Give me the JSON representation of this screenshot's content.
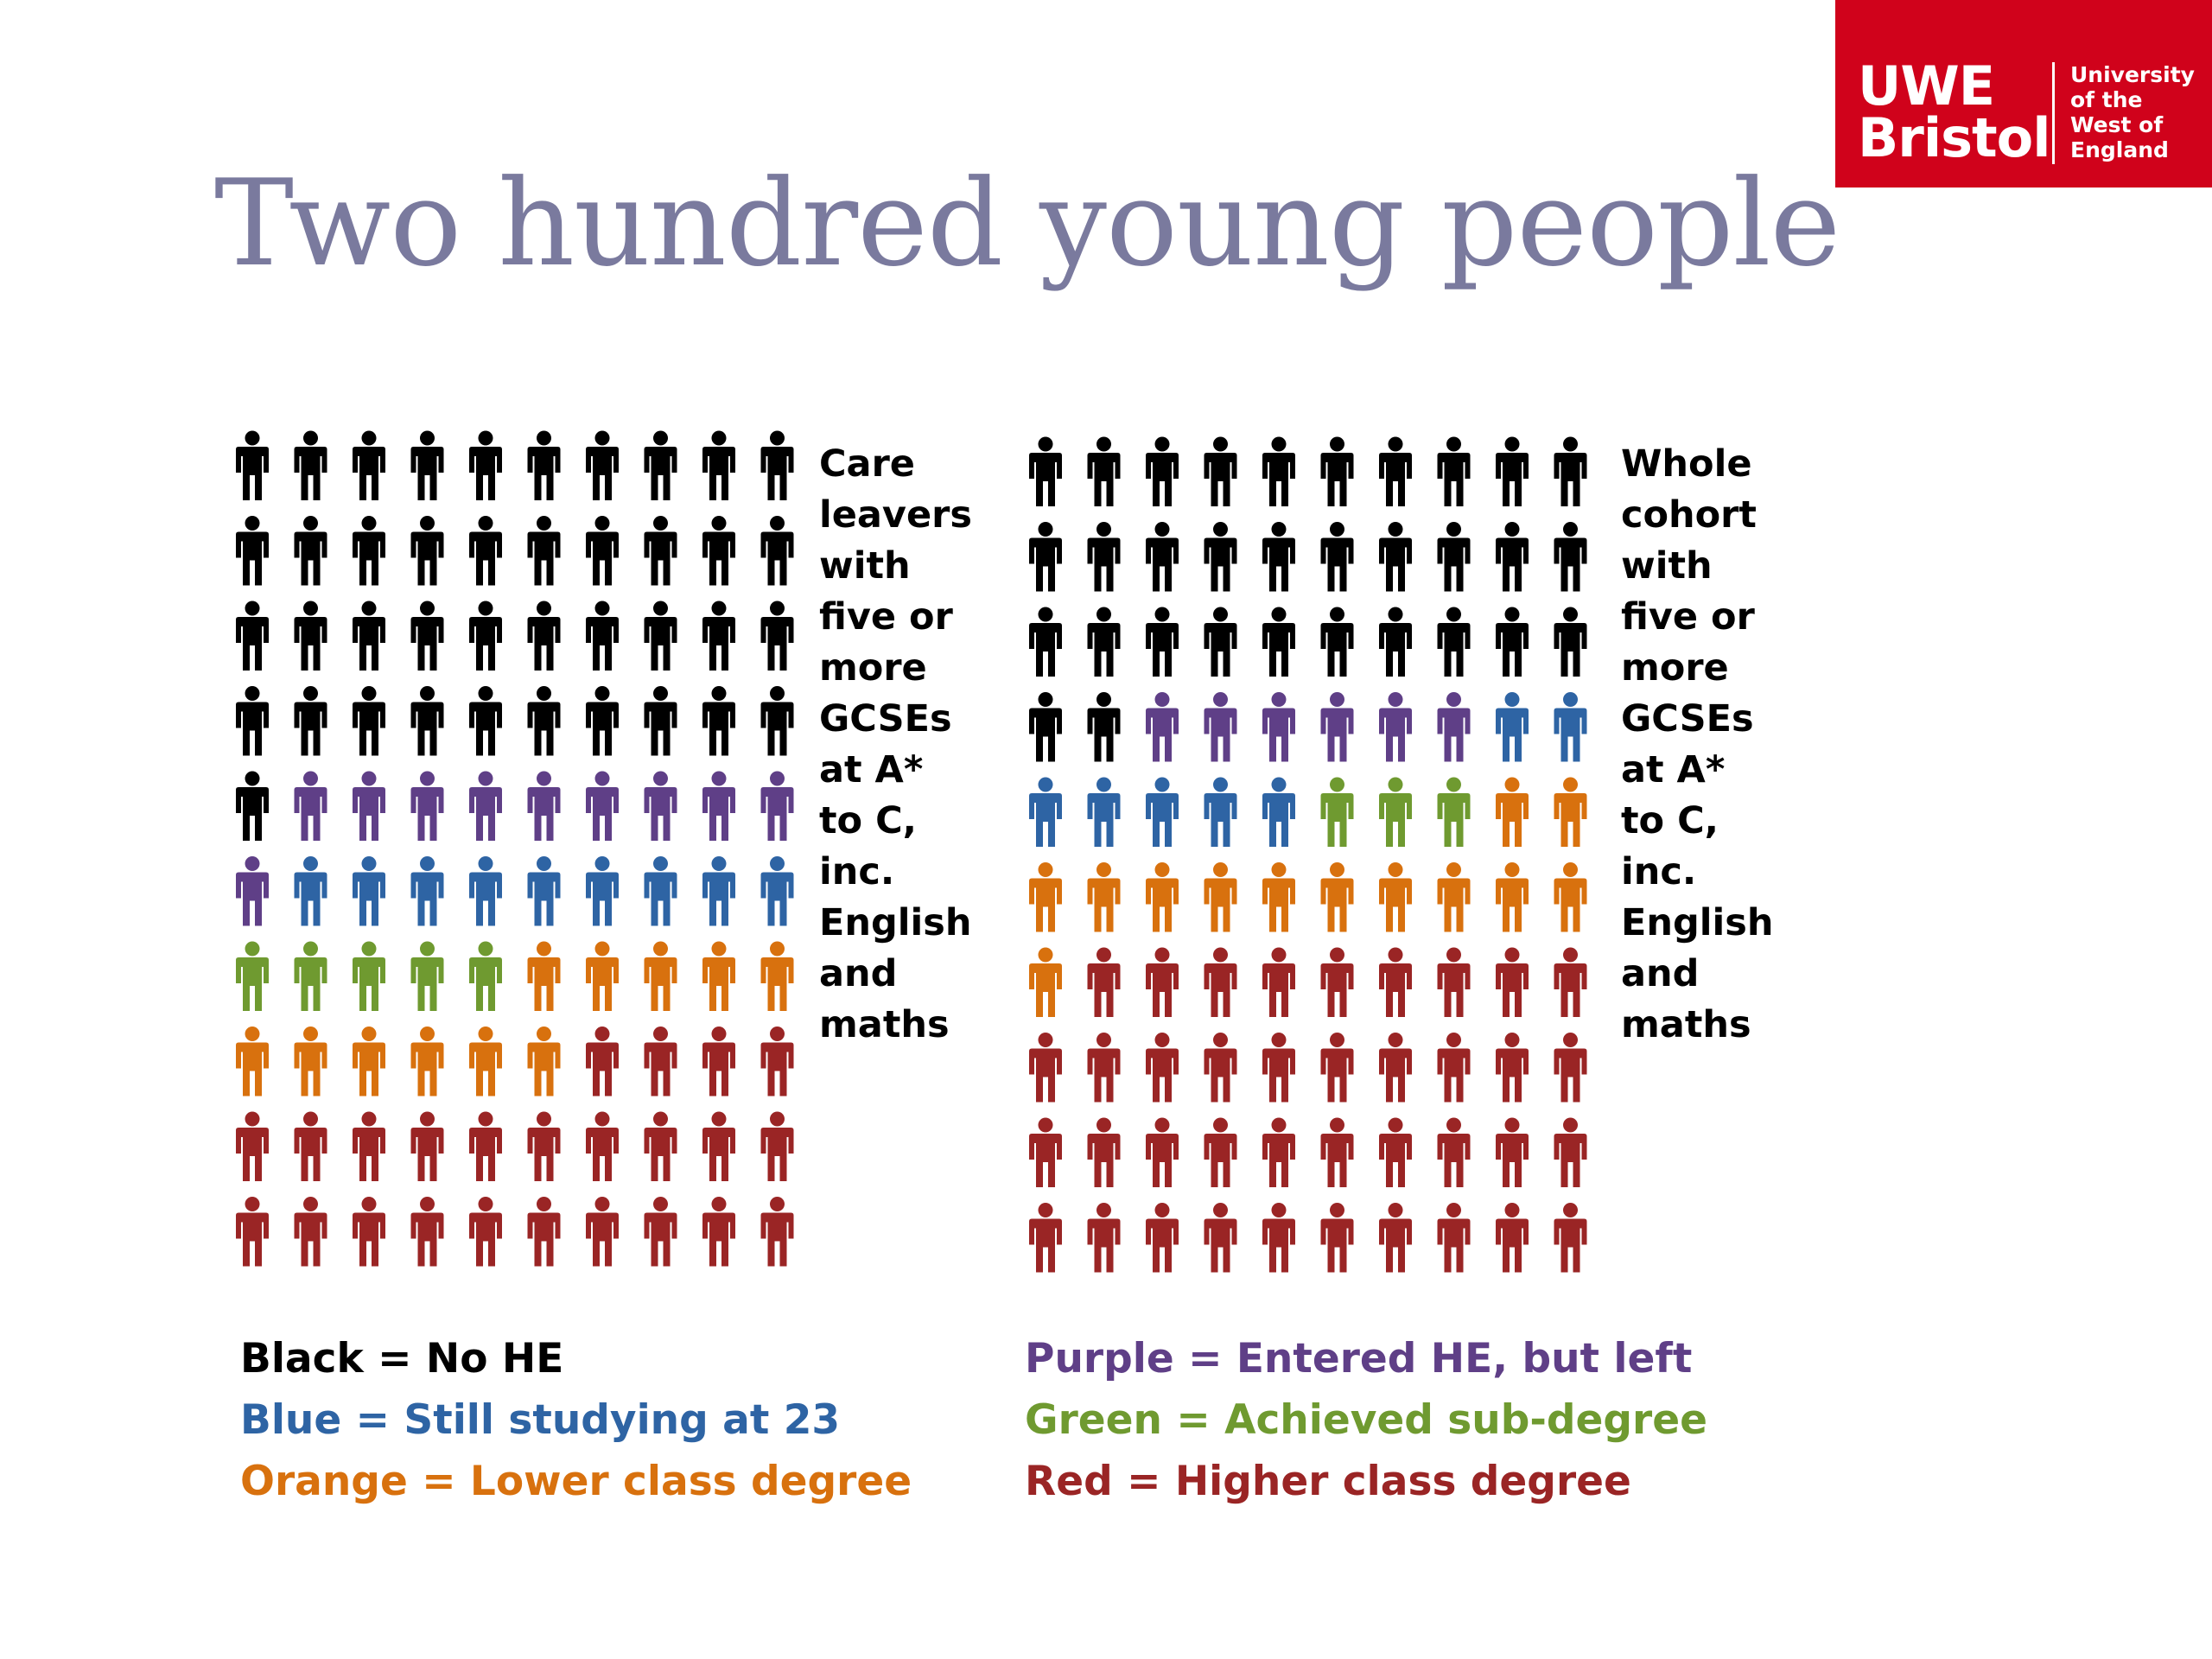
{
  "logo": {
    "main_lines": [
      "UWE",
      "Bristol"
    ],
    "sub_lines": [
      "University",
      "of the",
      "West of",
      "England"
    ]
  },
  "title": "Two hundred young people",
  "colors": {
    "black": "#000000",
    "purple": "#5f3f87",
    "blue": "#2e64a4",
    "green": "#6f9a30",
    "orange": "#d8710e",
    "red": "#9a2525"
  },
  "chart_data": [
    {
      "type": "pictogram",
      "description_label_lines": [
        "Care",
        "leavers",
        "with",
        "five or",
        "more",
        "GCSEs",
        "at A*",
        "to C,",
        "inc.",
        "English",
        "and",
        "maths"
      ],
      "units": 100,
      "columns": 10,
      "icon": "person-icon",
      "counts": [
        {
          "category": "black",
          "value": 41
        },
        {
          "category": "purple",
          "value": 10
        },
        {
          "category": "blue",
          "value": 9
        },
        {
          "category": "green",
          "value": 5
        },
        {
          "category": "orange",
          "value": 11
        },
        {
          "category": "red",
          "value": 24
        }
      ]
    },
    {
      "type": "pictogram",
      "description_label_lines": [
        "Whole",
        "cohort",
        "with",
        "five or",
        "more",
        "GCSEs",
        "at A*",
        "to C,",
        "inc.",
        "English",
        "and",
        "maths"
      ],
      "units": 100,
      "columns": 10,
      "icon": "person-icon",
      "counts": [
        {
          "category": "black",
          "value": 32
        },
        {
          "category": "purple",
          "value": 6
        },
        {
          "category": "blue",
          "value": 7
        },
        {
          "category": "green",
          "value": 3
        },
        {
          "category": "orange",
          "value": 13
        },
        {
          "category": "red",
          "value": 39
        }
      ]
    }
  ],
  "legend": {
    "left": [
      {
        "text": "Black = No HE",
        "color": "#000000"
      },
      {
        "text": "Blue = Still studying at 23",
        "color": "#2e64a4"
      },
      {
        "text": "Orange = Lower class degree",
        "color": "#d8710e"
      }
    ],
    "right": [
      {
        "text": "Purple = Entered HE, but left",
        "color": "#5f3f87"
      },
      {
        "text": "Green = Achieved sub-degree",
        "color": "#6f9a30"
      },
      {
        "text": "Red = Higher class degree",
        "color": "#9a2525"
      }
    ]
  }
}
